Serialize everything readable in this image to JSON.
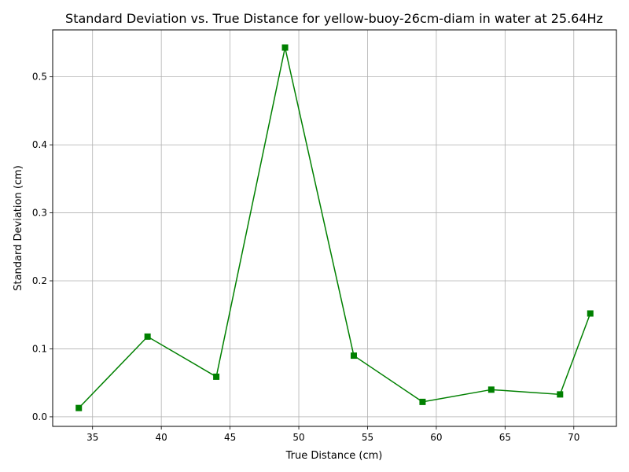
{
  "chart_data": {
    "type": "line",
    "title": "Standard Deviation vs. True Distance for yellow-buoy-26cm-diam in water at 25.64Hz",
    "xlabel": "True Distance (cm)",
    "ylabel": "Standard Deviation (cm)",
    "xlim": [
      32.1,
      73.1
    ],
    "ylim": [
      -0.014,
      0.569
    ],
    "xticks": [
      35,
      40,
      45,
      50,
      55,
      60,
      65,
      70
    ],
    "xtick_labels": [
      "35",
      "40",
      "45",
      "50",
      "55",
      "60",
      "65",
      "70"
    ],
    "yticks": [
      0.0,
      0.1,
      0.2,
      0.3,
      0.4,
      0.5
    ],
    "ytick_labels": [
      "0.0",
      "0.1",
      "0.2",
      "0.3",
      "0.4",
      "0.5"
    ],
    "grid": true,
    "series": [
      {
        "color": "#008000",
        "marker": "square",
        "x": [
          34,
          39,
          44,
          49,
          54,
          59,
          64,
          69,
          71.2
        ],
        "y": [
          0.013,
          0.118,
          0.059,
          0.543,
          0.09,
          0.022,
          0.04,
          0.033,
          0.152
        ]
      }
    ]
  }
}
